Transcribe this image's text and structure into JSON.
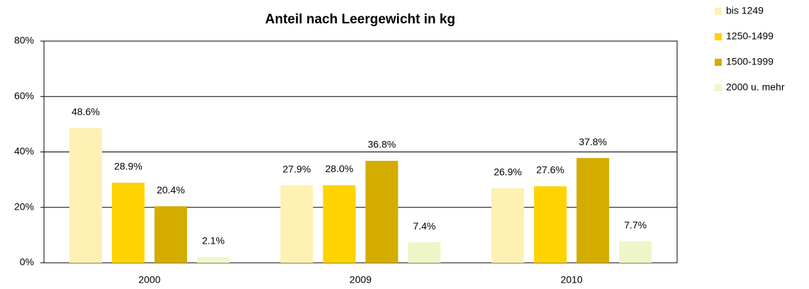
{
  "chart_data": {
    "type": "bar",
    "title": "Anteil nach Leergewicht in kg",
    "categories": [
      "2000",
      "2009",
      "2010"
    ],
    "series": [
      {
        "name": "bis 1249",
        "color": "#fff0b3",
        "values": [
          48.6,
          27.9,
          26.9
        ],
        "value_labels": [
          "48.6%",
          "27.9%",
          "26.9%"
        ]
      },
      {
        "name": "1250-1499",
        "color": "#ffd200",
        "values": [
          28.9,
          28.0,
          27.6
        ],
        "value_labels": [
          "28.9%",
          "28.0%",
          "27.6%"
        ]
      },
      {
        "name": "1500-1999",
        "color": "#d4ac00",
        "values": [
          20.4,
          36.8,
          37.8
        ],
        "value_labels": [
          "20.4%",
          "36.8%",
          "37.8%"
        ]
      },
      {
        "name": "2000 u. mehr",
        "color": "#f0f5c8",
        "values": [
          2.1,
          7.4,
          7.7
        ],
        "value_labels": [
          "2.1%",
          "7.4%",
          "7.7%"
        ]
      }
    ],
    "ylim": [
      0,
      80
    ],
    "yticks": [
      {
        "value": 0,
        "label": "0%"
      },
      {
        "value": 20,
        "label": "20%"
      },
      {
        "value": 40,
        "label": "40%"
      },
      {
        "value": 60,
        "label": "60%"
      },
      {
        "value": 80,
        "label": "80%"
      }
    ],
    "grid": true,
    "legend": "right"
  }
}
